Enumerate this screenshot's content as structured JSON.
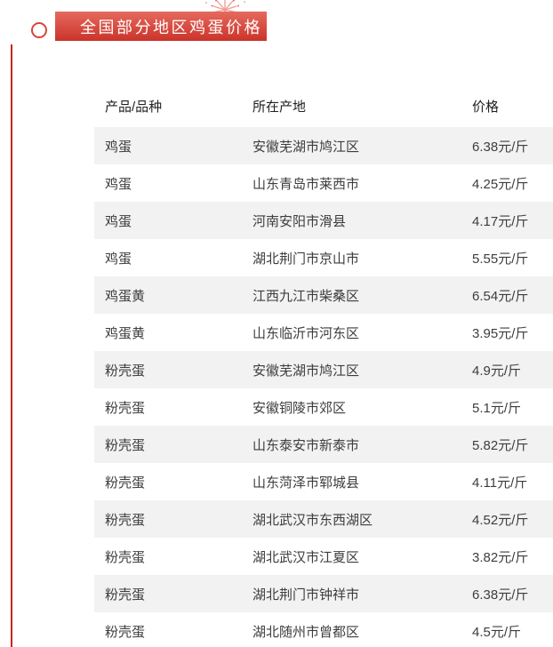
{
  "page": {
    "accent_color": "#d8453a",
    "line_color": "#c5271b"
  },
  "header": {
    "title": "全国部分地区鸡蛋价格",
    "banner_gradient_top": "#e56a5e",
    "banner_gradient_bottom": "#cb332a",
    "title_text_color": "#ffffff",
    "decorations": {
      "ring": "circle-ring-decoration",
      "firework": "firework-icon",
      "accent_line": "vertical-line-decoration"
    },
    "firework_color": "#ef9c92"
  },
  "table": {
    "columns": [
      "产品/品种",
      "所在产地",
      "价格"
    ],
    "zebra_colors": {
      "odd": "#f2f2f2",
      "even": "#ffffff"
    },
    "rows": [
      {
        "product": "鸡蛋",
        "origin": "安徽芜湖市鸠江区",
        "price": "6.38元/斤"
      },
      {
        "product": "鸡蛋",
        "origin": "山东青岛市莱西市",
        "price": "4.25元/斤"
      },
      {
        "product": "鸡蛋",
        "origin": "河南安阳市滑县",
        "price": "4.17元/斤"
      },
      {
        "product": "鸡蛋",
        "origin": "湖北荆门市京山市",
        "price": "5.55元/斤"
      },
      {
        "product": "鸡蛋黄",
        "origin": "江西九江市柴桑区",
        "price": "6.54元/斤"
      },
      {
        "product": "鸡蛋黄",
        "origin": "山东临沂市河东区",
        "price": "3.95元/斤"
      },
      {
        "product": "粉壳蛋",
        "origin": "安徽芜湖市鸠江区",
        "price": "4.9元/斤"
      },
      {
        "product": "粉壳蛋",
        "origin": "安徽铜陵市郊区",
        "price": "5.1元/斤"
      },
      {
        "product": "粉壳蛋",
        "origin": "山东泰安市新泰市",
        "price": "5.82元/斤"
      },
      {
        "product": "粉壳蛋",
        "origin": "山东菏泽市郓城县",
        "price": "4.11元/斤"
      },
      {
        "product": "粉壳蛋",
        "origin": "湖北武汉市东西湖区",
        "price": "4.52元/斤"
      },
      {
        "product": "粉壳蛋",
        "origin": "湖北武汉市江夏区",
        "price": "3.82元/斤"
      },
      {
        "product": "粉壳蛋",
        "origin": "湖北荆门市钟祥市",
        "price": "6.38元/斤"
      },
      {
        "product": "粉壳蛋",
        "origin": "湖北随州市曾都区",
        "price": "4.5元/斤"
      }
    ]
  }
}
